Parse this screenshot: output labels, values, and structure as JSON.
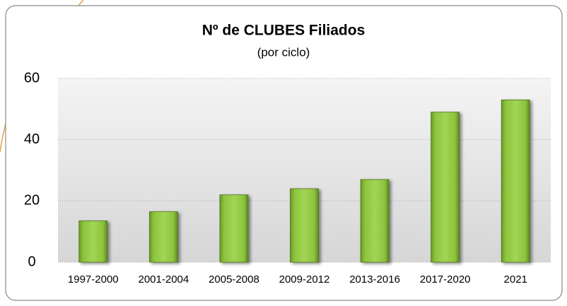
{
  "chart_data": {
    "type": "bar",
    "title": "Nº de CLUBES Filiados",
    "subtitle": "(por ciclo)",
    "categories": [
      "1997-2000",
      "2001-2004",
      "2005-2008",
      "2009-2012",
      "2013-2016",
      "2017-2020",
      "2021"
    ],
    "values": [
      13.5,
      16.5,
      22,
      24,
      27,
      49,
      53
    ],
    "color": "#8cc43c",
    "ylim": [
      0,
      60
    ],
    "yticks": [
      0,
      20,
      40,
      60
    ],
    "grid": true
  }
}
